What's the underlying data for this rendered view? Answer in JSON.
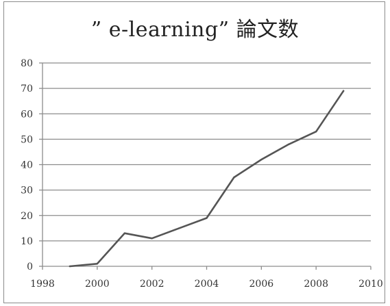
{
  "chart_data": {
    "type": "line",
    "title": "” e-learning” 論文数",
    "xlabel": "",
    "ylabel": "",
    "xlim": [
      1998,
      2010
    ],
    "ylim": [
      0,
      80
    ],
    "xticks": [
      1998,
      2000,
      2002,
      2004,
      2006,
      2008,
      2010
    ],
    "yticks": [
      0,
      10,
      20,
      30,
      40,
      50,
      60,
      70,
      80
    ],
    "grid": "horizontal",
    "legend": "none",
    "line_color": "#555555",
    "series": [
      {
        "x": [
          1999,
          2000,
          2001,
          2002,
          2003,
          2004,
          2005,
          2006,
          2007,
          2008,
          2009
        ],
        "values": [
          0,
          1,
          13,
          11,
          15,
          19,
          35,
          42,
          48,
          53,
          69
        ]
      }
    ]
  }
}
